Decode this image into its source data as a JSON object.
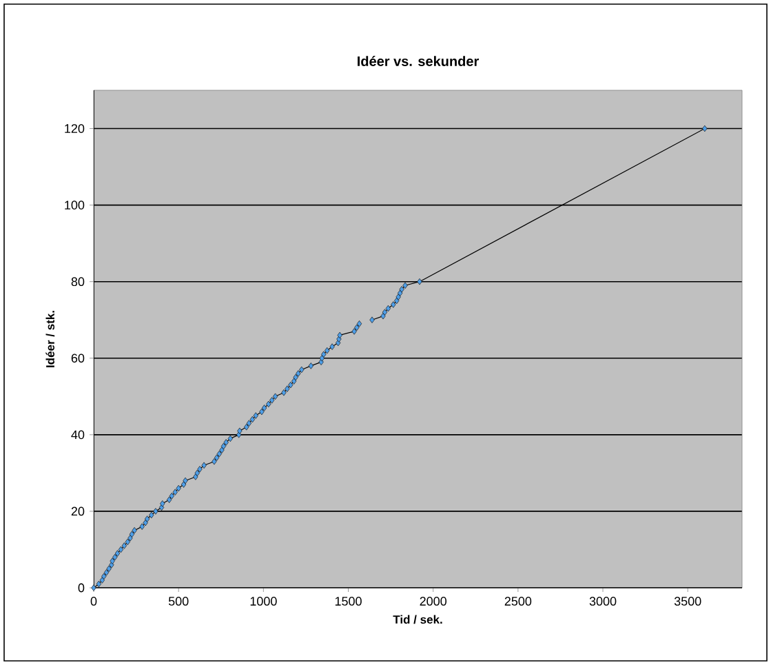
{
  "chart_data": {
    "type": "line",
    "title": "Idéer vs. sekunder",
    "xlabel": "Tid / sek.",
    "ylabel": "Idéer / stk.",
    "x": [
      0,
      30,
      50,
      60,
      75,
      90,
      105,
      110,
      125,
      140,
      160,
      180,
      200,
      215,
      225,
      240,
      285,
      305,
      315,
      340,
      365,
      400,
      405,
      445,
      460,
      480,
      500,
      530,
      540,
      600,
      610,
      625,
      650,
      710,
      725,
      740,
      755,
      765,
      780,
      805,
      855,
      860,
      900,
      915,
      935,
      955,
      990,
      1005,
      1030,
      1050,
      1070,
      1120,
      1140,
      1160,
      1180,
      1190,
      1205,
      1225,
      1280,
      1340,
      1345,
      1355,
      1375,
      1405,
      1440,
      1445,
      1450,
      1535,
      1550,
      1565,
      1600,
      1640,
      1705,
      1715,
      1735,
      1765,
      1785,
      1795,
      1805,
      1815,
      1835,
      1920,
      3600
    ],
    "series": [
      {
        "color": "#4f9fe8",
        "values": [
          0,
          1,
          2,
          3,
          4,
          5,
          6,
          7,
          8,
          9,
          10,
          11,
          12,
          13,
          14,
          15,
          16,
          17,
          18,
          19,
          20,
          21,
          22,
          23,
          24,
          25,
          26,
          27,
          28,
          29,
          30,
          31,
          32,
          33,
          34,
          35,
          36,
          37,
          38,
          39,
          40,
          41,
          42,
          43,
          44,
          45,
          46,
          47,
          48,
          49,
          50,
          51,
          52,
          53,
          54,
          55,
          56,
          57,
          58,
          59,
          60,
          61,
          62,
          63,
          64,
          65,
          66,
          67,
          68,
          69,
          null,
          70,
          71,
          72,
          73,
          74,
          75,
          76,
          77,
          78,
          79,
          80,
          120
        ]
      }
    ],
    "xlim": [
      0,
      3820
    ],
    "ylim": [
      0,
      130
    ],
    "xticks": [
      0,
      500,
      1000,
      1500,
      2000,
      2500,
      3000,
      3500
    ],
    "yticks": [
      0,
      20,
      40,
      60,
      80,
      100,
      120
    ],
    "grid": "y",
    "marker": "diamond",
    "line_style": "solid"
  }
}
